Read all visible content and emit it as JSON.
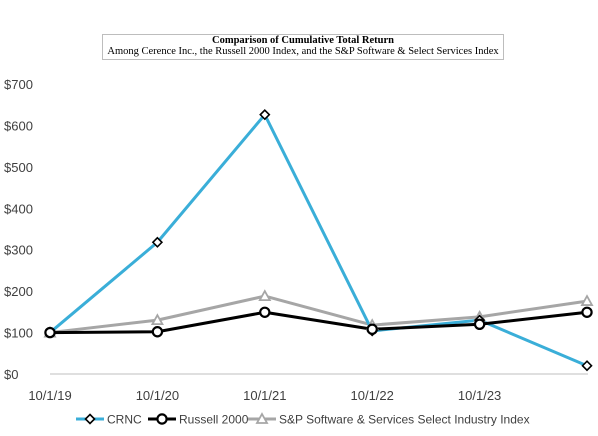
{
  "chart_data": {
    "type": "line",
    "title": "Comparison of Cumulative Total Return",
    "subtitle": "Among Cerence Inc., the Russell 2000 Index, and the S&P Software & Select Services Index",
    "categories": [
      "10/1/19",
      "10/1/20",
      "10/1/21",
      "10/1/22",
      "10/1/23",
      ""
    ],
    "y_ticks": [
      "$0",
      "$100",
      "$200",
      "$300",
      "$400",
      "$500",
      "$600",
      "$700"
    ],
    "ylim": [
      0,
      700
    ],
    "grid": false,
    "legend_position": "bottom",
    "series": [
      {
        "name": "CRNC",
        "color": "#3aaed8",
        "marker": "diamond",
        "values": [
          100,
          318,
          626,
          104,
          130,
          20
        ]
      },
      {
        "name": "Russell 2000",
        "color": "#000000",
        "marker": "circle",
        "values": [
          100,
          102,
          149,
          108,
          120,
          149
        ]
      },
      {
        "name": "S&P Software & Services Select Industry Index",
        "color": "#a6a6a6",
        "marker": "triangle",
        "values": [
          100,
          130,
          188,
          118,
          138,
          176
        ]
      }
    ]
  }
}
